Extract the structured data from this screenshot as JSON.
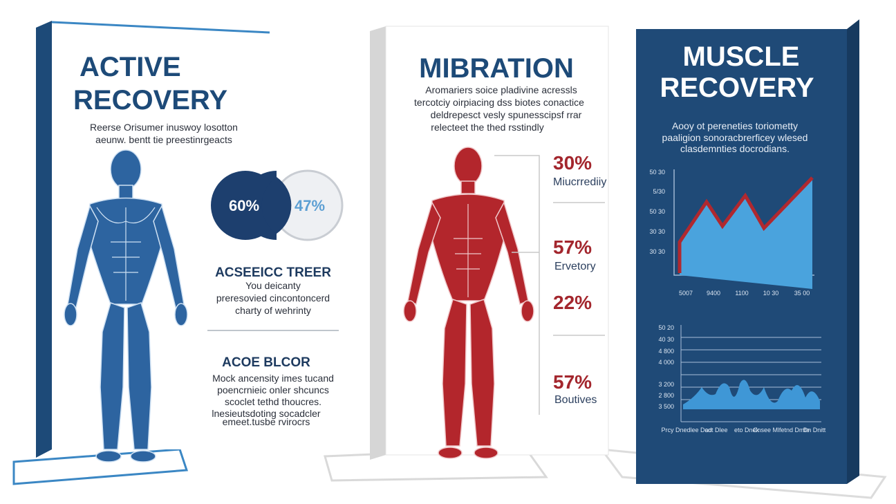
{
  "left_panel": {
    "title_lines": [
      "ACTIVE",
      "RECOVERY"
    ],
    "intro_lines": [
      "Reerse Orisumer inuswoy losotton",
      "aeunw. bentt tie preestinrgeacts"
    ],
    "donut_labels": [
      "60%",
      "47%"
    ],
    "section1": {
      "heading": "ACSEEICC TREER",
      "lines": [
        "You deicanty",
        "preresovied cincontoncerd",
        "charty of wehrinty"
      ]
    },
    "section2": {
      "heading": "ACOE BLCOR",
      "lines": [
        "Mock ancensity imes tucand",
        "poencrnieic onler shcuncs",
        "scoclet tethd thoucres.",
        "lnesieutsdoting socadcler",
        "emeet.tusbe rvirocrs"
      ]
    }
  },
  "middle_panel": {
    "title": "MIBRATION",
    "intro_lines": [
      "Aromariers soice pladivine acressls",
      "tercotciy oirpiacing dss biotes conactice",
      "deldrepesct vesly spunesscipsf rrar",
      "relecteet the thed rsstindly"
    ],
    "stats": [
      {
        "value": "30%",
        "label": "Miucrrediiy"
      },
      {
        "value": "57%",
        "label": "Ervetory"
      },
      {
        "value": "22%"
      },
      {
        "value": "57%",
        "label": "Boutives"
      }
    ]
  },
  "right_panel": {
    "title_lines": [
      "MUSCLE",
      "RECOVERY"
    ],
    "intro_lines": [
      "Aooy ot pereneties toriometty",
      "paaligion sonoracbrerficey wlesed",
      "clasdemnties docrodians."
    ],
    "chart1": {
      "y_labels": [
        "50 30",
        "5/30",
        "50 30",
        "30 30",
        "30 30"
      ],
      "x_labels": [
        "5007",
        "9400",
        "1100",
        "10 30",
        "35 00"
      ]
    },
    "chart2": {
      "y_labels": [
        "50 20",
        "40 30",
        "4 800",
        "4 000",
        "3 200",
        "2 800",
        "3 500"
      ],
      "x_labels": [
        "Prcy Dnedlee Dad",
        "cot Dlee",
        "eto Dnek",
        "Cnsee Mlfetnd Dmte",
        "Dn Dnitt"
      ]
    }
  }
}
